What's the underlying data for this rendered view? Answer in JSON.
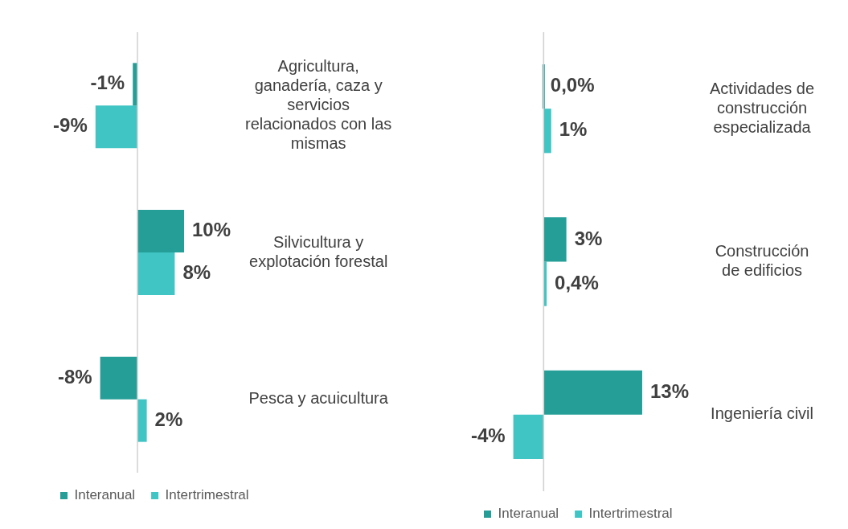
{
  "chart_data": [
    {
      "type": "bar",
      "orientation": "horizontal",
      "categories": [
        "Agricultura, ganadería, caza y servicios relacionados con las mismas",
        "Silvicultura y explotación forestal",
        "Pesca y acuicultura"
      ],
      "legend": "bottom",
      "series": [
        {
          "name": "Interanual",
          "color": "#259e98",
          "values": [
            -1,
            10,
            -8
          ],
          "value_labels": [
            "-1%",
            "10%",
            "-8%"
          ]
        },
        {
          "name": "Intertrimestral",
          "color": "#40c4c4",
          "values": [
            -9,
            8,
            2
          ],
          "value_labels": [
            "-9%",
            "8%",
            "2%"
          ]
        }
      ]
    },
    {
      "type": "bar",
      "orientation": "horizontal",
      "categories": [
        "Actividades de construcción especializada",
        "Construcción de edificios",
        "Ingeniería civil"
      ],
      "legend": "bottom",
      "series": [
        {
          "name": "Interanual",
          "color": "#259e98",
          "values": [
            0.0,
            3,
            13
          ],
          "value_labels": [
            "0,0%",
            "3%",
            "13%"
          ]
        },
        {
          "name": "Intertrimestral",
          "color": "#40c4c4",
          "values": [
            1,
            0.4,
            -4
          ],
          "value_labels": [
            "1%",
            "0,4%",
            "-4%"
          ]
        }
      ]
    }
  ]
}
